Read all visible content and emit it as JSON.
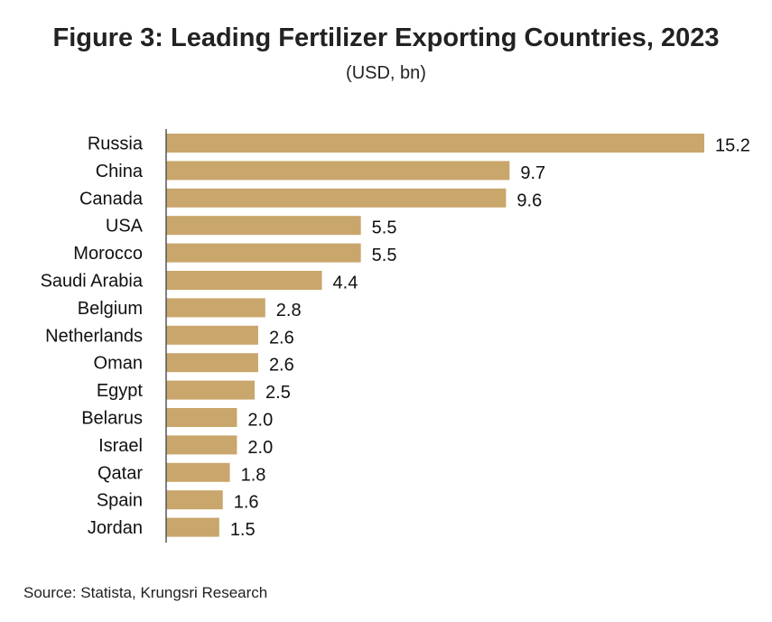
{
  "chart_data": {
    "type": "bar",
    "orientation": "horizontal",
    "title": "Figure 3: Leading Fertilizer Exporting Countries, 2023",
    "subtitle": "(USD, bn)",
    "categories": [
      "Russia",
      "China",
      "Canada",
      "USA",
      "Morocco",
      "Saudi Arabia",
      "Belgium",
      "Netherlands",
      "Oman",
      "Egypt",
      "Belarus",
      "Israel",
      "Qatar",
      "Spain",
      "Jordan"
    ],
    "values": [
      15.2,
      9.7,
      9.6,
      5.5,
      5.5,
      4.4,
      2.8,
      2.6,
      2.6,
      2.5,
      2.0,
      2.0,
      1.8,
      1.6,
      1.5
    ],
    "value_labels": [
      "15.2",
      "9.7",
      "9.6",
      "5.5",
      "5.5",
      "4.4",
      "2.8",
      "2.6",
      "2.6",
      "2.5",
      "2.0",
      "2.0",
      "1.8",
      "1.6",
      "1.5"
    ],
    "xlim": [
      0,
      16
    ],
    "grid": false,
    "bar_color": "#C9A66B",
    "source": "Source: Statista, Krungsri Research"
  }
}
